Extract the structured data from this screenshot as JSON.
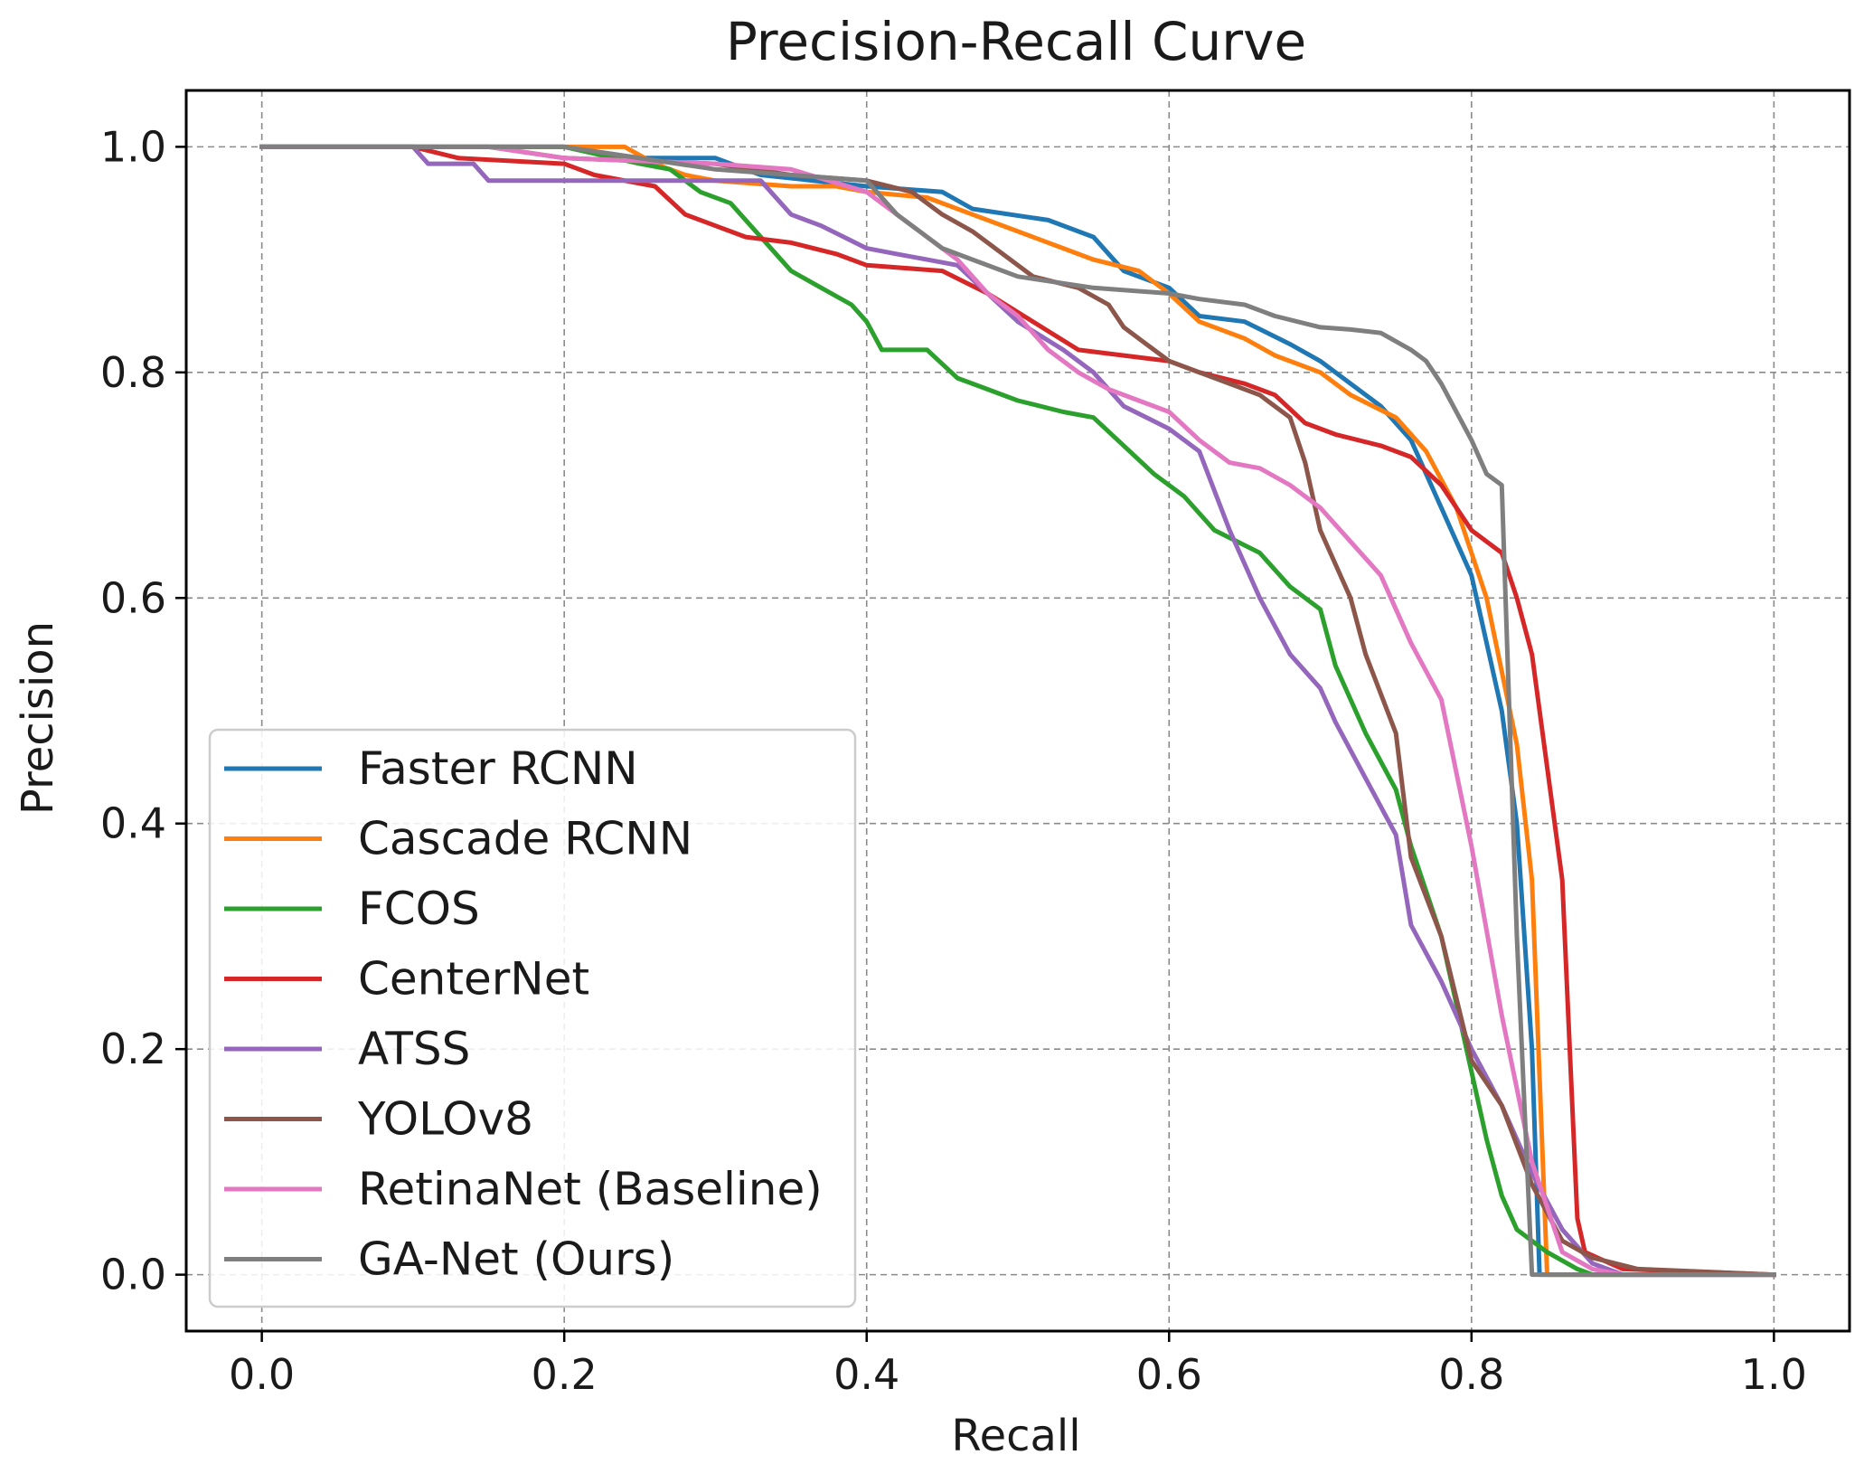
{
  "chart_data": {
    "type": "line",
    "title": "Precision-Recall Curve",
    "xlabel": "Recall",
    "ylabel": "Precision",
    "xlim": [
      -0.05,
      1.05
    ],
    "ylim": [
      -0.05,
      1.05
    ],
    "x_ticks": [
      {
        "value": 0.0,
        "label": "0.0"
      },
      {
        "value": 0.2,
        "label": "0.2"
      },
      {
        "value": 0.4,
        "label": "0.4"
      },
      {
        "value": 0.6,
        "label": "0.6"
      },
      {
        "value": 0.8,
        "label": "0.8"
      },
      {
        "value": 1.0,
        "label": "1.0"
      }
    ],
    "y_ticks": [
      {
        "value": 0.0,
        "label": "0.0"
      },
      {
        "value": 0.2,
        "label": "0.2"
      },
      {
        "value": 0.4,
        "label": "0.4"
      },
      {
        "value": 0.6,
        "label": "0.6"
      },
      {
        "value": 0.8,
        "label": "0.8"
      },
      {
        "value": 1.0,
        "label": "1.0"
      }
    ],
    "grid": true,
    "legend_position": "lower-left",
    "series": [
      {
        "name": "Faster RCNN",
        "color": "#1f77b4",
        "points": [
          [
            0.0,
            1.0
          ],
          [
            0.2,
            1.0
          ],
          [
            0.25,
            0.99
          ],
          [
            0.3,
            0.99
          ],
          [
            0.33,
            0.975
          ],
          [
            0.4,
            0.965
          ],
          [
            0.45,
            0.96
          ],
          [
            0.47,
            0.945
          ],
          [
            0.52,
            0.935
          ],
          [
            0.55,
            0.92
          ],
          [
            0.57,
            0.89
          ],
          [
            0.6,
            0.875
          ],
          [
            0.62,
            0.85
          ],
          [
            0.65,
            0.845
          ],
          [
            0.68,
            0.825
          ],
          [
            0.7,
            0.81
          ],
          [
            0.72,
            0.79
          ],
          [
            0.74,
            0.77
          ],
          [
            0.76,
            0.74
          ],
          [
            0.78,
            0.68
          ],
          [
            0.8,
            0.62
          ],
          [
            0.82,
            0.5
          ],
          [
            0.83,
            0.4
          ],
          [
            0.84,
            0.2
          ],
          [
            0.845,
            0.0
          ],
          [
            1.0,
            0.0
          ]
        ]
      },
      {
        "name": "Cascade RCNN",
        "color": "#ff7f0e",
        "points": [
          [
            0.0,
            1.0
          ],
          [
            0.24,
            1.0
          ],
          [
            0.26,
            0.985
          ],
          [
            0.28,
            0.975
          ],
          [
            0.3,
            0.97
          ],
          [
            0.35,
            0.965
          ],
          [
            0.38,
            0.965
          ],
          [
            0.4,
            0.96
          ],
          [
            0.44,
            0.955
          ],
          [
            0.47,
            0.94
          ],
          [
            0.5,
            0.925
          ],
          [
            0.53,
            0.91
          ],
          [
            0.55,
            0.9
          ],
          [
            0.58,
            0.89
          ],
          [
            0.6,
            0.87
          ],
          [
            0.62,
            0.845
          ],
          [
            0.65,
            0.83
          ],
          [
            0.67,
            0.815
          ],
          [
            0.7,
            0.8
          ],
          [
            0.72,
            0.78
          ],
          [
            0.75,
            0.76
          ],
          [
            0.77,
            0.73
          ],
          [
            0.79,
            0.68
          ],
          [
            0.81,
            0.6
          ],
          [
            0.83,
            0.47
          ],
          [
            0.84,
            0.35
          ],
          [
            0.85,
            0.0
          ],
          [
            1.0,
            0.0
          ]
        ]
      },
      {
        "name": "FCOS",
        "color": "#2ca02c",
        "points": [
          [
            0.0,
            1.0
          ],
          [
            0.2,
            1.0
          ],
          [
            0.25,
            0.985
          ],
          [
            0.27,
            0.98
          ],
          [
            0.29,
            0.96
          ],
          [
            0.31,
            0.95
          ],
          [
            0.33,
            0.92
          ],
          [
            0.35,
            0.89
          ],
          [
            0.37,
            0.875
          ],
          [
            0.39,
            0.86
          ],
          [
            0.4,
            0.845
          ],
          [
            0.41,
            0.82
          ],
          [
            0.44,
            0.82
          ],
          [
            0.46,
            0.795
          ],
          [
            0.48,
            0.785
          ],
          [
            0.5,
            0.775
          ],
          [
            0.53,
            0.765
          ],
          [
            0.55,
            0.76
          ],
          [
            0.57,
            0.735
          ],
          [
            0.59,
            0.71
          ],
          [
            0.61,
            0.69
          ],
          [
            0.63,
            0.66
          ],
          [
            0.66,
            0.64
          ],
          [
            0.68,
            0.61
          ],
          [
            0.7,
            0.59
          ],
          [
            0.71,
            0.54
          ],
          [
            0.73,
            0.48
          ],
          [
            0.75,
            0.43
          ],
          [
            0.76,
            0.38
          ],
          [
            0.78,
            0.3
          ],
          [
            0.8,
            0.18
          ],
          [
            0.81,
            0.12
          ],
          [
            0.82,
            0.07
          ],
          [
            0.83,
            0.04
          ],
          [
            0.85,
            0.02
          ],
          [
            0.87,
            0.005
          ],
          [
            0.88,
            0.0
          ],
          [
            1.0,
            0.0
          ]
        ]
      },
      {
        "name": "CenterNet",
        "color": "#d62728",
        "points": [
          [
            0.0,
            1.0
          ],
          [
            0.1,
            1.0
          ],
          [
            0.13,
            0.99
          ],
          [
            0.2,
            0.985
          ],
          [
            0.22,
            0.975
          ],
          [
            0.26,
            0.965
          ],
          [
            0.28,
            0.94
          ],
          [
            0.3,
            0.93
          ],
          [
            0.32,
            0.92
          ],
          [
            0.35,
            0.915
          ],
          [
            0.38,
            0.905
          ],
          [
            0.4,
            0.895
          ],
          [
            0.45,
            0.89
          ],
          [
            0.48,
            0.87
          ],
          [
            0.51,
            0.845
          ],
          [
            0.54,
            0.82
          ],
          [
            0.57,
            0.815
          ],
          [
            0.6,
            0.81
          ],
          [
            0.62,
            0.8
          ],
          [
            0.65,
            0.79
          ],
          [
            0.67,
            0.78
          ],
          [
            0.69,
            0.755
          ],
          [
            0.71,
            0.745
          ],
          [
            0.74,
            0.735
          ],
          [
            0.76,
            0.725
          ],
          [
            0.78,
            0.7
          ],
          [
            0.8,
            0.66
          ],
          [
            0.82,
            0.64
          ],
          [
            0.83,
            0.6
          ],
          [
            0.84,
            0.55
          ],
          [
            0.85,
            0.45
          ],
          [
            0.86,
            0.35
          ],
          [
            0.865,
            0.2
          ],
          [
            0.87,
            0.05
          ],
          [
            0.875,
            0.02
          ],
          [
            0.9,
            0.005
          ],
          [
            1.0,
            0.0
          ]
        ]
      },
      {
        "name": "ATSS",
        "color": "#9467bd",
        "points": [
          [
            0.0,
            1.0
          ],
          [
            0.1,
            1.0
          ],
          [
            0.11,
            0.985
          ],
          [
            0.14,
            0.985
          ],
          [
            0.15,
            0.97
          ],
          [
            0.2,
            0.97
          ],
          [
            0.3,
            0.97
          ],
          [
            0.33,
            0.97
          ],
          [
            0.35,
            0.94
          ],
          [
            0.37,
            0.93
          ],
          [
            0.4,
            0.91
          ],
          [
            0.42,
            0.905
          ],
          [
            0.44,
            0.9
          ],
          [
            0.46,
            0.895
          ],
          [
            0.48,
            0.87
          ],
          [
            0.5,
            0.845
          ],
          [
            0.53,
            0.82
          ],
          [
            0.55,
            0.8
          ],
          [
            0.57,
            0.77
          ],
          [
            0.6,
            0.75
          ],
          [
            0.62,
            0.73
          ],
          [
            0.64,
            0.66
          ],
          [
            0.66,
            0.6
          ],
          [
            0.68,
            0.55
          ],
          [
            0.7,
            0.52
          ],
          [
            0.71,
            0.49
          ],
          [
            0.73,
            0.44
          ],
          [
            0.75,
            0.39
          ],
          [
            0.76,
            0.31
          ],
          [
            0.78,
            0.26
          ],
          [
            0.8,
            0.2
          ],
          [
            0.82,
            0.15
          ],
          [
            0.84,
            0.09
          ],
          [
            0.86,
            0.04
          ],
          [
            0.88,
            0.01
          ],
          [
            0.9,
            0.0
          ],
          [
            1.0,
            0.0
          ]
        ]
      },
      {
        "name": "YOLOv8",
        "color": "#8c564b",
        "points": [
          [
            0.0,
            1.0
          ],
          [
            0.12,
            1.0
          ],
          [
            0.15,
            1.0
          ],
          [
            0.2,
            0.99
          ],
          [
            0.3,
            0.985
          ],
          [
            0.35,
            0.975
          ],
          [
            0.4,
            0.97
          ],
          [
            0.43,
            0.96
          ],
          [
            0.45,
            0.94
          ],
          [
            0.47,
            0.925
          ],
          [
            0.49,
            0.905
          ],
          [
            0.51,
            0.885
          ],
          [
            0.54,
            0.875
          ],
          [
            0.56,
            0.86
          ],
          [
            0.57,
            0.84
          ],
          [
            0.58,
            0.83
          ],
          [
            0.6,
            0.81
          ],
          [
            0.62,
            0.8
          ],
          [
            0.64,
            0.79
          ],
          [
            0.66,
            0.78
          ],
          [
            0.68,
            0.76
          ],
          [
            0.69,
            0.72
          ],
          [
            0.7,
            0.66
          ],
          [
            0.72,
            0.6
          ],
          [
            0.73,
            0.55
          ],
          [
            0.75,
            0.48
          ],
          [
            0.76,
            0.37
          ],
          [
            0.78,
            0.3
          ],
          [
            0.8,
            0.19
          ],
          [
            0.82,
            0.15
          ],
          [
            0.84,
            0.08
          ],
          [
            0.86,
            0.03
          ],
          [
            0.88,
            0.015
          ],
          [
            0.91,
            0.005
          ],
          [
            1.0,
            0.0
          ]
        ]
      },
      {
        "name": "RetinaNet (Baseline)",
        "color": "#e377c2",
        "points": [
          [
            0.0,
            1.0
          ],
          [
            0.15,
            1.0
          ],
          [
            0.2,
            0.99
          ],
          [
            0.3,
            0.985
          ],
          [
            0.35,
            0.98
          ],
          [
            0.4,
            0.96
          ],
          [
            0.42,
            0.94
          ],
          [
            0.44,
            0.92
          ],
          [
            0.46,
            0.9
          ],
          [
            0.48,
            0.87
          ],
          [
            0.5,
            0.85
          ],
          [
            0.52,
            0.82
          ],
          [
            0.54,
            0.8
          ],
          [
            0.56,
            0.785
          ],
          [
            0.58,
            0.775
          ],
          [
            0.6,
            0.765
          ],
          [
            0.62,
            0.74
          ],
          [
            0.64,
            0.72
          ],
          [
            0.66,
            0.715
          ],
          [
            0.68,
            0.7
          ],
          [
            0.7,
            0.68
          ],
          [
            0.72,
            0.65
          ],
          [
            0.74,
            0.62
          ],
          [
            0.76,
            0.56
          ],
          [
            0.78,
            0.51
          ],
          [
            0.8,
            0.38
          ],
          [
            0.82,
            0.23
          ],
          [
            0.84,
            0.1
          ],
          [
            0.86,
            0.02
          ],
          [
            0.88,
            0.005
          ],
          [
            0.9,
            0.0
          ],
          [
            1.0,
            0.0
          ]
        ]
      },
      {
        "name": "GA-Net (Ours)",
        "color": "#7f7f7f",
        "points": [
          [
            0.0,
            1.0
          ],
          [
            0.2,
            1.0
          ],
          [
            0.3,
            0.98
          ],
          [
            0.35,
            0.975
          ],
          [
            0.4,
            0.97
          ],
          [
            0.42,
            0.94
          ],
          [
            0.45,
            0.91
          ],
          [
            0.47,
            0.9
          ],
          [
            0.5,
            0.885
          ],
          [
            0.55,
            0.875
          ],
          [
            0.6,
            0.87
          ],
          [
            0.62,
            0.865
          ],
          [
            0.65,
            0.86
          ],
          [
            0.67,
            0.85
          ],
          [
            0.7,
            0.84
          ],
          [
            0.72,
            0.838
          ],
          [
            0.74,
            0.835
          ],
          [
            0.76,
            0.82
          ],
          [
            0.77,
            0.81
          ],
          [
            0.78,
            0.79
          ],
          [
            0.8,
            0.74
          ],
          [
            0.81,
            0.71
          ],
          [
            0.82,
            0.7
          ],
          [
            0.83,
            0.3
          ],
          [
            0.84,
            0.0
          ],
          [
            1.0,
            0.0
          ]
        ]
      }
    ]
  }
}
